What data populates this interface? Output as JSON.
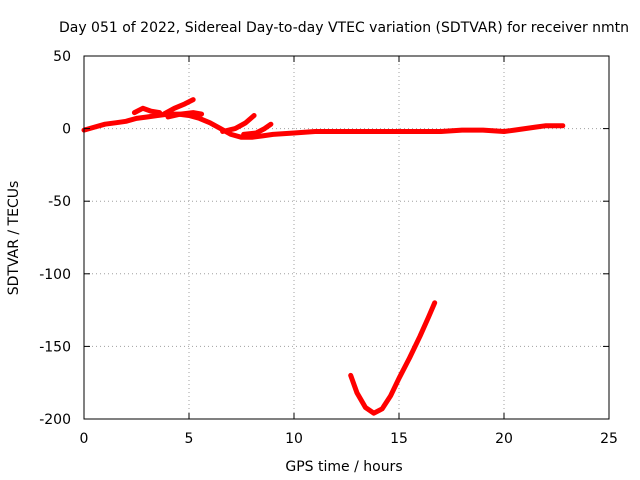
{
  "chart_data": {
    "type": "line",
    "title": "Day 051 of 2022, Sidereal Day-to-day VTEC variation (SDTVAR) for receiver nmtn",
    "xlabel": "GPS time / hours",
    "ylabel": "SDTVAR / TECUs",
    "xlim": [
      0,
      25
    ],
    "ylim": [
      -200,
      50
    ],
    "xticks": [
      0,
      5,
      10,
      15,
      20,
      25
    ],
    "yticks": [
      -200,
      -150,
      -100,
      -50,
      0,
      50
    ],
    "grid": true,
    "series_color": "#ff0000",
    "series": [
      {
        "name": "main",
        "points": [
          [
            0,
            -1
          ],
          [
            0.5,
            1
          ],
          [
            1,
            3
          ],
          [
            1.5,
            4
          ],
          [
            2,
            5
          ],
          [
            2.5,
            7
          ],
          [
            3,
            8
          ],
          [
            3.5,
            9
          ],
          [
            4,
            10
          ],
          [
            4.5,
            10
          ],
          [
            5,
            9
          ],
          [
            5.5,
            7
          ],
          [
            6,
            4
          ],
          [
            6.5,
            0
          ],
          [
            7,
            -4
          ],
          [
            7.5,
            -6
          ],
          [
            8,
            -6
          ],
          [
            8.5,
            -5
          ],
          [
            9,
            -4
          ],
          [
            10,
            -3
          ],
          [
            11,
            -2
          ],
          [
            12,
            -2
          ],
          [
            13,
            -2
          ],
          [
            14,
            -2
          ],
          [
            15,
            -2
          ],
          [
            16,
            -2
          ],
          [
            17,
            -2
          ],
          [
            18,
            -1
          ],
          [
            19,
            -1
          ],
          [
            20,
            -2
          ],
          [
            20.5,
            -1
          ],
          [
            21,
            0
          ],
          [
            21.5,
            1
          ],
          [
            22,
            2
          ],
          [
            22.5,
            2
          ],
          [
            22.8,
            2
          ]
        ]
      },
      {
        "name": "spike-1",
        "points": [
          [
            2.4,
            11
          ],
          [
            2.8,
            14
          ],
          [
            3.2,
            12
          ],
          [
            3.6,
            11
          ]
        ]
      },
      {
        "name": "spike-2",
        "points": [
          [
            3.8,
            10
          ],
          [
            4.3,
            14
          ],
          [
            4.8,
            17
          ],
          [
            5.2,
            20
          ]
        ]
      },
      {
        "name": "spike-3",
        "points": [
          [
            4.0,
            8
          ],
          [
            4.6,
            10
          ],
          [
            5.2,
            11
          ],
          [
            5.6,
            10
          ]
        ]
      },
      {
        "name": "arc-1",
        "points": [
          [
            6.6,
            -2
          ],
          [
            7.2,
            0
          ],
          [
            7.7,
            4
          ],
          [
            8.1,
            9
          ]
        ]
      },
      {
        "name": "arc-2",
        "points": [
          [
            7.6,
            -4
          ],
          [
            8.2,
            -3
          ],
          [
            8.6,
            0
          ],
          [
            8.9,
            3
          ]
        ]
      },
      {
        "name": "dip",
        "points": [
          [
            12.7,
            -170
          ],
          [
            13.0,
            -182
          ],
          [
            13.4,
            -192
          ],
          [
            13.8,
            -196
          ],
          [
            14.2,
            -193
          ],
          [
            14.6,
            -184
          ],
          [
            15.0,
            -172
          ],
          [
            15.5,
            -158
          ],
          [
            16.0,
            -143
          ],
          [
            16.4,
            -130
          ],
          [
            16.7,
            -120
          ]
        ]
      }
    ]
  }
}
